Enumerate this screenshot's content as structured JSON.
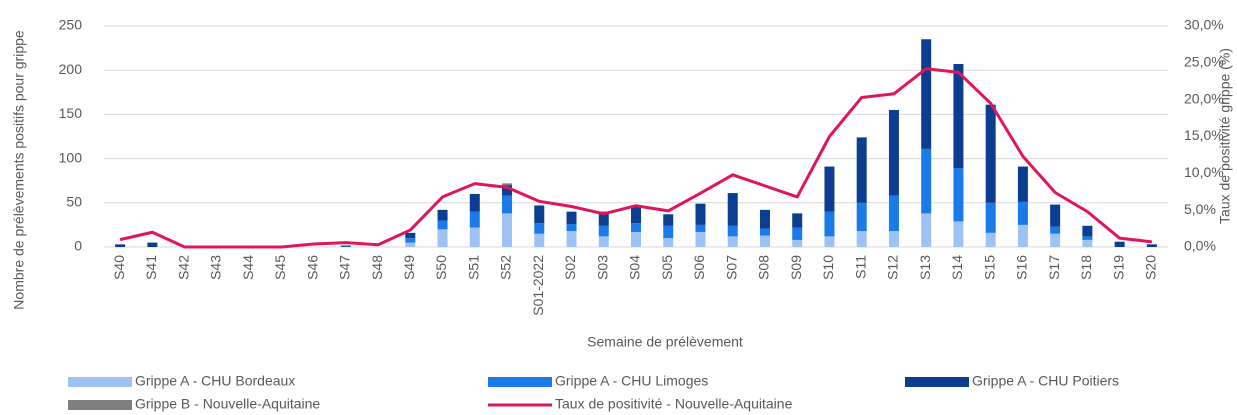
{
  "chart_data": {
    "type": "bar",
    "stacked": true,
    "x_label": "Semaine de prélèvement",
    "y_label": "Nombre de prélèvements positifs pour grippe",
    "y2_label": "Taux de positivité  grippe (%)",
    "categories": [
      "S40",
      "S41",
      "S42",
      "S43",
      "S44",
      "S45",
      "S46",
      "S47",
      "S48",
      "S49",
      "S50",
      "S51",
      "S52",
      "S01-2022",
      "S02",
      "S03",
      "S04",
      "S05",
      "S06",
      "S07",
      "S08",
      "S09",
      "S10",
      "S11",
      "S12",
      "S13",
      "S14",
      "S15",
      "S16",
      "S17",
      "S18",
      "S19",
      "S20"
    ],
    "series": [
      {
        "name": "Grippe A - CHU Bordeaux",
        "color": "#9dc3f5",
        "values": [
          0,
          0,
          0,
          0,
          0,
          0,
          0,
          0,
          0,
          5,
          20,
          22,
          38,
          15,
          18,
          12,
          17,
          10,
          17,
          12,
          13,
          8,
          12,
          18,
          18,
          38,
          29,
          16,
          25,
          15,
          8,
          0,
          0
        ]
      },
      {
        "name": "Grippe A - CHU Limoges",
        "color": "#1a7be8",
        "values": [
          0,
          0,
          0,
          0,
          0,
          0,
          0,
          0,
          0,
          5,
          10,
          18,
          20,
          12,
          8,
          12,
          10,
          14,
          8,
          12,
          8,
          14,
          28,
          32,
          40,
          73,
          60,
          34,
          26,
          8,
          4,
          0,
          0
        ]
      },
      {
        "name": "Grippe A - CHU Poitiers",
        "color": "#0b3d91",
        "values": [
          3,
          5,
          0,
          0,
          0,
          0,
          0,
          1,
          0,
          6,
          12,
          20,
          12,
          20,
          14,
          16,
          20,
          13,
          24,
          37,
          21,
          16,
          51,
          74,
          97,
          124,
          118,
          111,
          40,
          25,
          12,
          6,
          3
        ]
      },
      {
        "name": "Grippe B - Nouvelle-Aquitaine",
        "color": "#7f7f7f",
        "values": [
          0,
          0,
          0,
          0,
          0,
          0,
          0,
          1,
          0,
          0,
          0,
          0,
          2,
          0,
          0,
          0,
          0,
          0,
          0,
          0,
          0,
          0,
          0,
          0,
          0,
          0,
          0,
          0,
          0,
          0,
          0,
          0,
          0
        ]
      },
      {
        "name": "Taux de positivité - Nouvelle-Aquitaine",
        "color": "#e0155c",
        "axis": "y2",
        "values": [
          1.0,
          2.0,
          0,
          0,
          0,
          0,
          0.4,
          0.6,
          0.3,
          2.3,
          6.8,
          8.6,
          8.1,
          6.2,
          5.5,
          4.5,
          5.6,
          4.9,
          7.3,
          9.8,
          8.3,
          6.8,
          15.0,
          20.3,
          20.8,
          24.2,
          23.7,
          19.5,
          12.3,
          7.4,
          4.8,
          1.2,
          0.7
        ]
      }
    ],
    "ylim": [
      0,
      250
    ],
    "yticks": [
      0,
      50,
      100,
      150,
      200,
      250
    ],
    "y2lim": [
      0,
      30
    ],
    "y2ticks": [
      {
        "value": 0,
        "label": "0,0%"
      },
      {
        "value": 5,
        "label": "5,0%"
      },
      {
        "value": 10,
        "label": "10,0%"
      },
      {
        "value": 15,
        "label": "15,0%"
      },
      {
        "value": 20,
        "label": "20,0%"
      },
      {
        "value": 25,
        "label": "25,0%"
      },
      {
        "value": 30,
        "label": "30,0%"
      }
    ],
    "grid": true,
    "legend": "bottom"
  }
}
